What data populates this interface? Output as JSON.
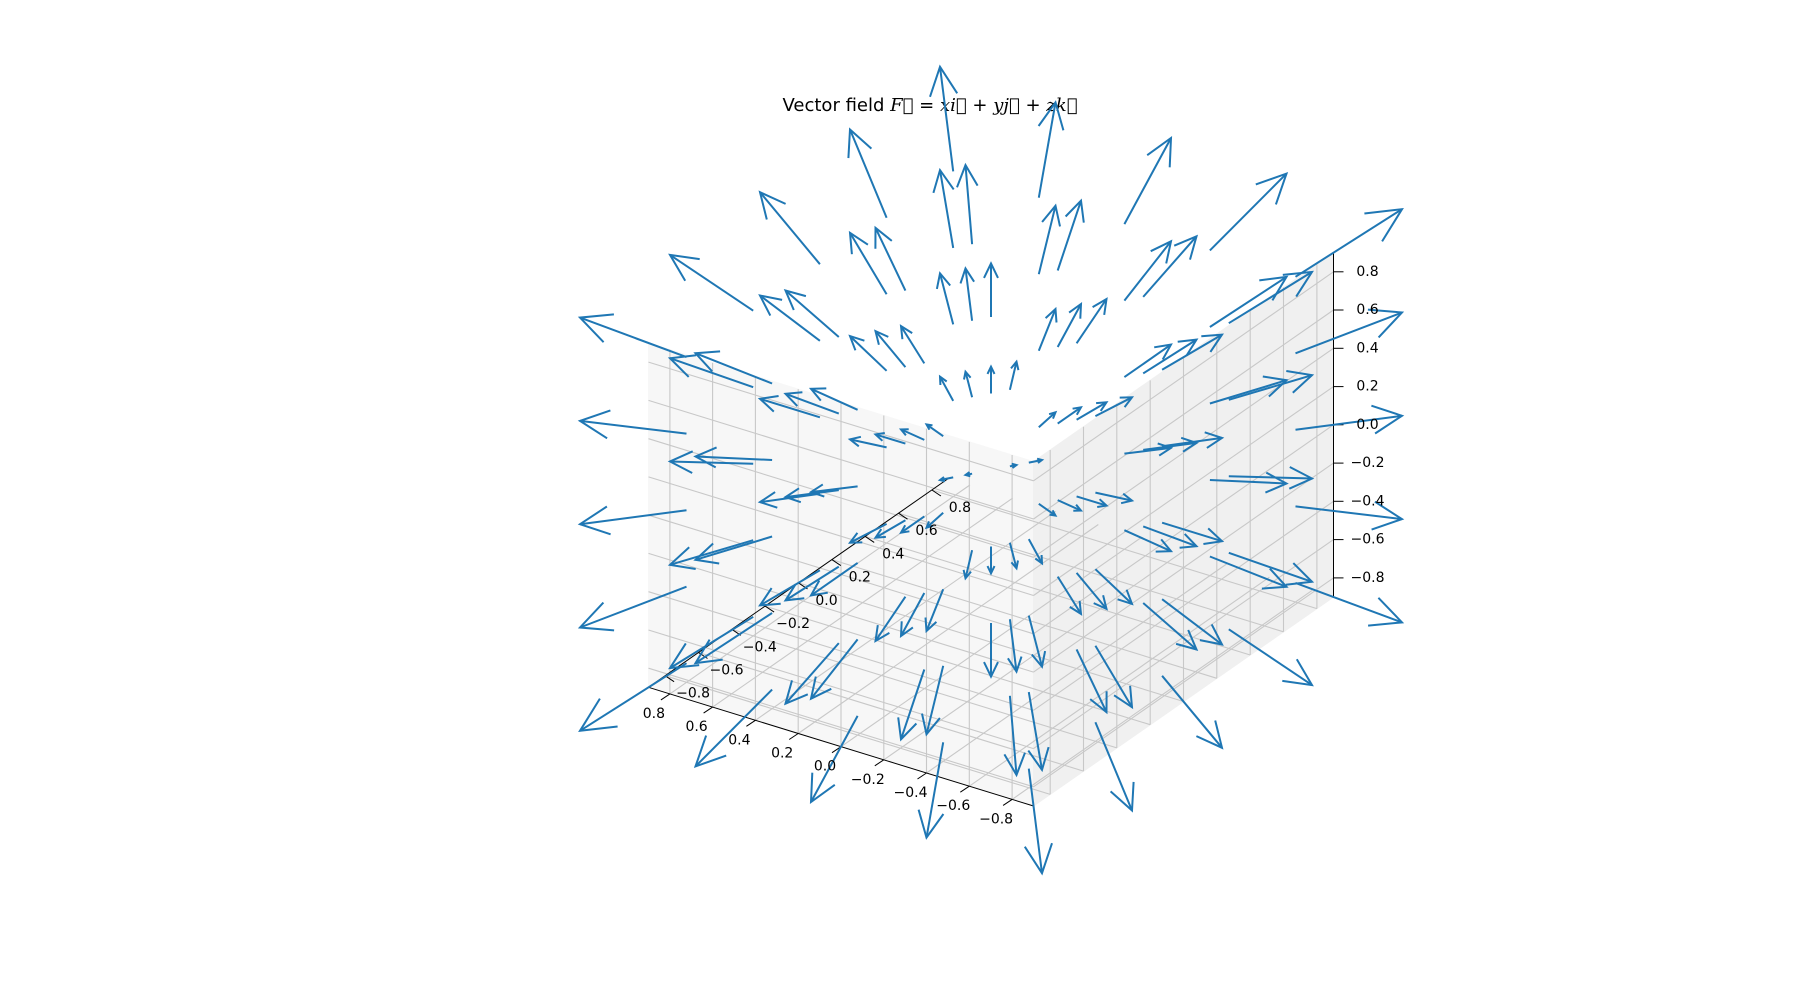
{
  "title": {
    "prefix": "Vector field ",
    "equation": "F = xi + yj + zk"
  },
  "colors": {
    "quiver": "#1f77b4",
    "grid": "#c8c8c8",
    "background": "#ffffff"
  },
  "chart_data": {
    "type": "quiver3d",
    "title": "Vector field F = xi + yj + zk",
    "field": {
      "u": "x",
      "v": "y",
      "w": "z"
    },
    "grid_values": [
      -0.8,
      -0.4,
      0.0,
      0.4,
      0.8
    ],
    "xlim": [
      -0.9,
      0.9
    ],
    "ylim": [
      -0.9,
      0.9
    ],
    "zlim": [
      -0.9,
      0.9
    ],
    "x_ticks": [
      "−0.8",
      "−0.6",
      "−0.4",
      "−0.2",
      "0.0",
      "0.2",
      "0.4",
      "0.6",
      "0.8"
    ],
    "y_ticks": [
      "−0.8",
      "−0.6",
      "−0.4",
      "−0.2",
      "0.0",
      "0.2",
      "0.4",
      "0.6",
      "0.8"
    ],
    "z_ticks": [
      "−0.8",
      "−0.6",
      "−0.4",
      "−0.2",
      "0.0",
      "0.2",
      "0.4",
      "0.6",
      "0.8"
    ],
    "tick_values": [
      -0.8,
      -0.6,
      -0.4,
      -0.2,
      0.0,
      0.2,
      0.4,
      0.6,
      0.8
    ],
    "grid": true,
    "legend": false
  }
}
